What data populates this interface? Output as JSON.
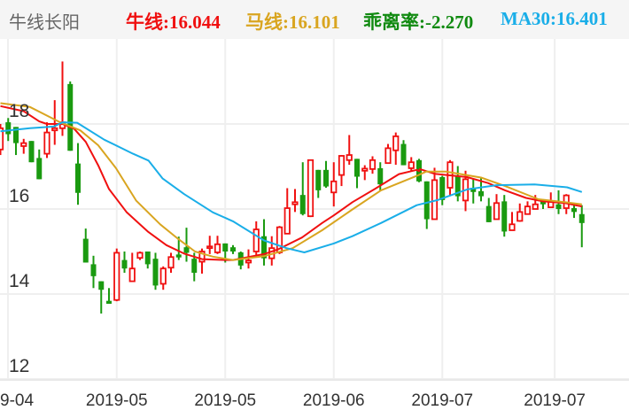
{
  "header": {
    "title": "牛线长阳",
    "indicators": [
      {
        "label": "牛线:",
        "value": "16.044",
        "color": "#f01010"
      },
      {
        "label": "马线:",
        "value": "16.101",
        "color": "#d9a520"
      },
      {
        "label": "乖离率:",
        "value": "-2.270",
        "color": "#108a10"
      },
      {
        "label": "MA30:",
        "value": "16.401",
        "color": "#1aaee8"
      }
    ]
  },
  "chart_data": {
    "type": "candlestick",
    "up_color": "#f01010",
    "down_color": "#1a9a10",
    "ylim": [
      12,
      19.6
    ],
    "yticks": [
      "12",
      "14",
      "16",
      "18"
    ],
    "ytick_values": [
      12,
      14,
      16,
      18
    ],
    "grid": true,
    "xticks": [
      {
        "label": "9-04",
        "bar": -0.5
      },
      {
        "label": "2019-05",
        "bar": 15
      },
      {
        "label": "2019-05",
        "bar": 29
      },
      {
        "label": "2019-06",
        "bar": 43
      },
      {
        "label": "2019-07",
        "bar": 57
      },
      {
        "label": "2019-07",
        "bar": 71.5
      }
    ],
    "ohlc": [
      [
        17.4,
        18.0,
        17.27,
        17.9
      ],
      [
        18.04,
        18.14,
        17.6,
        17.76
      ],
      [
        17.93,
        17.93,
        17.27,
        17.55
      ],
      [
        17.48,
        17.65,
        17.3,
        17.55
      ],
      [
        17.6,
        17.6,
        17.1,
        17.1
      ],
      [
        17.2,
        17.4,
        16.7,
        16.7
      ],
      [
        17.3,
        18.04,
        17.2,
        17.8
      ],
      [
        17.85,
        18.56,
        17.51,
        17.9
      ],
      [
        17.9,
        19.47,
        17.72,
        18.04
      ],
      [
        18.94,
        19.0,
        17.37,
        17.37
      ],
      [
        17.07,
        17.55,
        16.1,
        16.38
      ],
      [
        15.3,
        15.54,
        14.74,
        14.74
      ],
      [
        14.7,
        14.9,
        14.14,
        14.42
      ],
      [
        14.3,
        14.3,
        13.54,
        14.1
      ],
      [
        13.84,
        14.14,
        13.77,
        13.77
      ],
      [
        13.86,
        15.07,
        13.83,
        14.97
      ],
      [
        14.8,
        15.0,
        14.5,
        14.6
      ],
      [
        14.3,
        14.97,
        14.3,
        14.6
      ],
      [
        14.85,
        15.0,
        14.8,
        14.97
      ],
      [
        15.0,
        15.0,
        14.6,
        14.7
      ],
      [
        14.83,
        14.97,
        14.1,
        14.2
      ],
      [
        14.24,
        14.65,
        14.1,
        14.6
      ],
      [
        14.62,
        14.97,
        14.5,
        14.87
      ],
      [
        14.93,
        15.35,
        14.8,
        14.86
      ],
      [
        15.1,
        15.56,
        14.76,
        14.97
      ],
      [
        14.83,
        14.97,
        14.3,
        14.5
      ],
      [
        14.76,
        15.07,
        14.48,
        15.0
      ],
      [
        15.08,
        15.37,
        14.94,
        15.12
      ],
      [
        14.98,
        15.37,
        14.94,
        15.17
      ],
      [
        15.19,
        15.19,
        14.74,
        15.0
      ],
      [
        15.1,
        15.15,
        14.94,
        15.0
      ],
      [
        14.98,
        15.0,
        14.58,
        14.67
      ],
      [
        14.74,
        15.05,
        14.6,
        14.79
      ],
      [
        15.0,
        15.71,
        14.9,
        15.52
      ],
      [
        15.36,
        15.76,
        14.67,
        14.84
      ],
      [
        14.84,
        15.36,
        14.67,
        15.08
      ],
      [
        14.98,
        15.6,
        14.94,
        15.57
      ],
      [
        15.42,
        16.49,
        15.42,
        16.02
      ],
      [
        16.11,
        16.47,
        15.93,
        16.16
      ],
      [
        16.33,
        17.1,
        15.85,
        15.88
      ],
      [
        15.83,
        17.15,
        15.81,
        17.15
      ],
      [
        16.92,
        16.92,
        16.26,
        16.44
      ],
      [
        16.92,
        17.13,
        16.5,
        16.53
      ],
      [
        16.39,
        17.1,
        16.06,
        16.65
      ],
      [
        16.8,
        17.27,
        16.54,
        17.25
      ],
      [
        17.15,
        17.74,
        17.04,
        17.27
      ],
      [
        17.18,
        17.18,
        16.49,
        16.76
      ],
      [
        16.9,
        17.03,
        16.68,
        16.95
      ],
      [
        16.94,
        17.24,
        16.83,
        17.15
      ],
      [
        16.96,
        17.1,
        16.44,
        16.58
      ],
      [
        17.08,
        17.53,
        17.08,
        17.43
      ],
      [
        17.38,
        17.8,
        17.04,
        17.71
      ],
      [
        17.53,
        17.62,
        17.03,
        17.03
      ],
      [
        16.96,
        17.22,
        16.88,
        17.1
      ],
      [
        17.15,
        17.18,
        16.63,
        16.65
      ],
      [
        16.65,
        16.65,
        15.53,
        15.76
      ],
      [
        15.76,
        16.97,
        15.76,
        16.68
      ],
      [
        16.75,
        16.78,
        16.09,
        16.21
      ],
      [
        16.5,
        17.15,
        16.3,
        17.1
      ],
      [
        16.76,
        17.01,
        16.18,
        16.3
      ],
      [
        16.2,
        16.9,
        15.95,
        16.7
      ],
      [
        16.5,
        16.72,
        16.13,
        16.4
      ],
      [
        16.42,
        16.72,
        16.18,
        16.3
      ],
      [
        16.07,
        16.26,
        15.69,
        15.69
      ],
      [
        15.76,
        16.35,
        15.76,
        16.14
      ],
      [
        16.18,
        16.33,
        15.35,
        15.47
      ],
      [
        15.5,
        15.93,
        15.5,
        15.64
      ],
      [
        15.72,
        16.13,
        15.7,
        15.93
      ],
      [
        15.88,
        16.18,
        15.88,
        16.06
      ],
      [
        16.0,
        16.33,
        16.0,
        16.11
      ],
      [
        16.23,
        16.23,
        16.0,
        16.11
      ],
      [
        16.04,
        16.39,
        16.04,
        16.18
      ],
      [
        16.11,
        16.44,
        15.88,
        16.0
      ],
      [
        16.02,
        16.35,
        15.88,
        16.32
      ],
      [
        16.02,
        16.13,
        15.79,
        15.93
      ],
      [
        15.88,
        16.09,
        15.1,
        15.67
      ]
    ],
    "series": [
      {
        "name": "牛线",
        "color": "#f01010",
        "points": [
          [
            0,
            18.42
          ],
          [
            3,
            18.3
          ],
          [
            5,
            18.06
          ],
          [
            6,
            18.0
          ],
          [
            8,
            18.0
          ],
          [
            9.5,
            17.89
          ],
          [
            11,
            17.58
          ],
          [
            12.6,
            17.03
          ],
          [
            14,
            16.47
          ],
          [
            16.3,
            15.92
          ],
          [
            19,
            15.47
          ],
          [
            21.4,
            15.15
          ],
          [
            23.7,
            14.95
          ],
          [
            26,
            14.82
          ],
          [
            29,
            14.8
          ],
          [
            30,
            14.8
          ],
          [
            34,
            14.94
          ],
          [
            35.8,
            15.05
          ],
          [
            38.9,
            15.33
          ],
          [
            41.5,
            15.67
          ],
          [
            43,
            15.85
          ],
          [
            45.4,
            16.16
          ],
          [
            48.3,
            16.47
          ],
          [
            51.4,
            16.82
          ],
          [
            53.7,
            16.92
          ],
          [
            54,
            16.89
          ],
          [
            54.1,
            16.94
          ],
          [
            56,
            16.83
          ],
          [
            60.2,
            16.75
          ],
          [
            62.9,
            16.61
          ],
          [
            65.1,
            16.44
          ],
          [
            67.8,
            16.26
          ],
          [
            70,
            16.18
          ],
          [
            72.8,
            16.14
          ],
          [
            75,
            16.06
          ]
        ]
      },
      {
        "name": "马线",
        "color": "#d9a520",
        "points": [
          [
            0,
            18.49
          ],
          [
            3.8,
            18.4
          ],
          [
            7.7,
            18.04
          ],
          [
            10.3,
            17.85
          ],
          [
            12.6,
            17.5
          ],
          [
            14.9,
            16.96
          ],
          [
            17.5,
            16.2
          ],
          [
            20.6,
            15.64
          ],
          [
            22.9,
            15.3
          ],
          [
            25.1,
            15.0
          ],
          [
            27.4,
            14.88
          ],
          [
            30,
            14.8
          ],
          [
            34,
            14.89
          ],
          [
            37.7,
            15.08
          ],
          [
            41.5,
            15.5
          ],
          [
            45.4,
            15.99
          ],
          [
            49.1,
            16.44
          ],
          [
            53.7,
            16.78
          ],
          [
            54.9,
            16.88
          ],
          [
            57.5,
            16.88
          ],
          [
            62,
            16.74
          ],
          [
            65.1,
            16.54
          ],
          [
            69.4,
            16.23
          ],
          [
            72.8,
            16.16
          ],
          [
            75,
            16.11
          ]
        ]
      },
      {
        "name": "MA30",
        "color": "#1aaee8",
        "points": [
          [
            0,
            17.83
          ],
          [
            3.8,
            17.9
          ],
          [
            6.9,
            17.94
          ],
          [
            8,
            18.04
          ],
          [
            9.9,
            18.03
          ],
          [
            13.4,
            17.63
          ],
          [
            17.1,
            17.3
          ],
          [
            19.1,
            17.14
          ],
          [
            20.9,
            16.72
          ],
          [
            23.7,
            16.35
          ],
          [
            27.4,
            15.92
          ],
          [
            30,
            15.71
          ],
          [
            34,
            15.26
          ],
          [
            36.9,
            15.08
          ],
          [
            39.2,
            14.98
          ],
          [
            43,
            15.19
          ],
          [
            45.4,
            15.36
          ],
          [
            49.1,
            15.67
          ],
          [
            53.7,
            16.09
          ],
          [
            56.4,
            16.21
          ],
          [
            60.2,
            16.46
          ],
          [
            64,
            16.56
          ],
          [
            68.9,
            16.58
          ],
          [
            73.1,
            16.51
          ],
          [
            75,
            16.4
          ]
        ]
      }
    ]
  }
}
